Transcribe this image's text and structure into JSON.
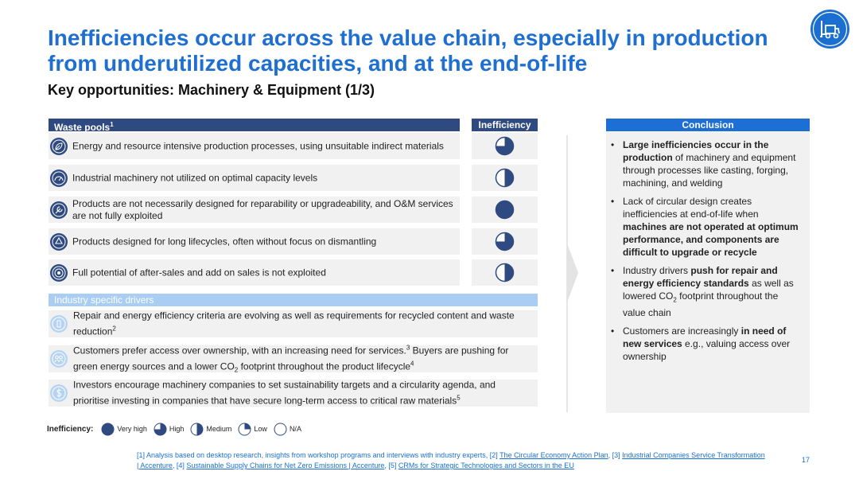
{
  "title": {
    "line1": "Inefficiencies occur across the value chain, especially in production",
    "line2": "from underutilized capacities, and at the end-of-life"
  },
  "subtitle": "Key opportunities: Machinery & Equipment (1/3)",
  "logo_icon": "forklift-icon",
  "waste_pools": {
    "header": "Waste pools",
    "header_sup": "1",
    "inefficiency_header": "Inefficiency",
    "rows": [
      {
        "icon": "leaf-icon",
        "text": "Energy and resource intensive production processes, using unsuitable indirect materials",
        "rating": "high",
        "fill": 0.75
      },
      {
        "icon": "gauge-icon",
        "text": "Industrial machinery not utilized on optimal capacity levels",
        "rating": "medium",
        "fill": 0.5
      },
      {
        "icon": "wrench-icon",
        "text": "Products are not necessarily designed for reparability or upgradeability, and O&M services are not fully exploited",
        "rating": "very high",
        "fill": 1.0
      },
      {
        "icon": "recycle-icon",
        "text": "Products designed for long lifecycles, often without focus on dismantling",
        "rating": "high",
        "fill": 0.75
      },
      {
        "icon": "target-icon",
        "text": "Full potential of after-sales and add on sales is not exploited",
        "rating": "medium",
        "fill": 0.5
      }
    ]
  },
  "drivers": {
    "header": "Industry specific drivers",
    "rows": [
      {
        "icon": "regulation-icon",
        "text": "Repair and energy efficiency criteria are evolving as well as requirements for recycled content and waste reduction",
        "sup": "2"
      },
      {
        "icon": "people-icon",
        "text_a": "Customers prefer access over ownership, with an increasing need for services.",
        "sup_a": "3",
        "text_b": " Buyers are pushing for green energy sources and a lower CO",
        "sub_b": "2",
        "text_c": " footprint throughout the product lifecycle",
        "sup_c": "4"
      },
      {
        "icon": "dollar-icon",
        "text": "Investors encourage machinery companies to set sustainability targets and a circularity agenda, and prioritise investing in companies that have secure long-term access to critical raw materials",
        "sup": "5"
      }
    ]
  },
  "conclusion": {
    "header": "Conclusion",
    "bullet": "•",
    "items": [
      {
        "bold_1": "Large inefficiencies occur in the production",
        "text_1": " of machinery and equipment through processes like casting, forging, machining, and welding"
      },
      {
        "text_1": "Lack of circular design creates inefficiencies at end-of-life when ",
        "bold_1": "machines are not operated at optimum performance, and components are difficult to upgrade or recycle"
      },
      {
        "text_1": "Industry drivers ",
        "bold_1": "push for repair and energy efficiency standards",
        "text_2": " as well as lowered CO",
        "sub": "2",
        "text_3": " footprint throughout the value chain"
      },
      {
        "text_1": "Customers are increasingly ",
        "bold_1": "in need of new services",
        "text_2": " e.g., valuing access over ownership"
      }
    ]
  },
  "legend": {
    "label": "Inefficiency:",
    "items": [
      {
        "label": "Very high",
        "fill": 1.0
      },
      {
        "label": "High",
        "fill": 0.75
      },
      {
        "label": "Medium",
        "fill": 0.5
      },
      {
        "label": "Low",
        "fill": 0.25
      },
      {
        "label": "N/A",
        "fill": 0
      }
    ]
  },
  "footnote": {
    "p1": "[1] Analysis based on desktop research, insights from workshop programs and interviews with industry experts, [2] ",
    "l1": "The Circular Economy Action Plan",
    "p2": ", [3] ",
    "l2": "Industrial Companies Service Transformation | Accenture",
    "p3": ", [4] ",
    "l3": "Sustainable Supply Chains for Net Zero Emissions | Accenture",
    "p4": ", [5] ",
    "l4": "CRMs for Strategic Technologies and Sectors in the EU"
  },
  "page_number": "17",
  "colors": {
    "accent": "#1f6fd1",
    "navy": "#2f4a80",
    "light_blue": "#a9cdf3",
    "panel": "#f1f1f1"
  }
}
